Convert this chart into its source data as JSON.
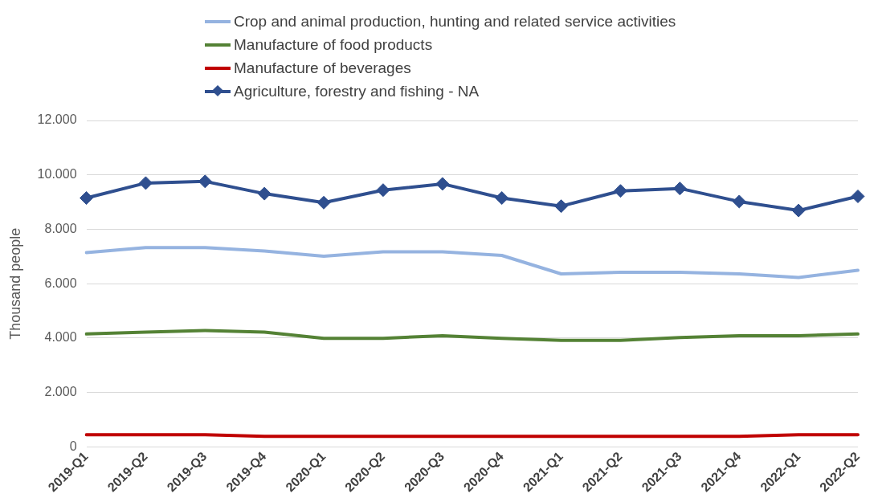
{
  "chart_data": {
    "type": "line",
    "ylabel": "Thousand people",
    "categories": [
      "2019-Q1",
      "2019-Q2",
      "2019-Q3",
      "2019-Q4",
      "2020-Q1",
      "2020-Q2",
      "2020-Q3",
      "2020-Q4",
      "2021-Q1",
      "2021-Q2",
      "2021-Q3",
      "2021-Q4",
      "2022-Q1",
      "2022-Q2"
    ],
    "series": [
      {
        "name": "Crop and animal production, hunting and related service activities",
        "color": "#95b3e0",
        "marker": "none",
        "values": [
          7140,
          7330,
          7330,
          7200,
          7010,
          7170,
          7170,
          7040,
          6360,
          6420,
          6420,
          6360,
          6230,
          6490
        ]
      },
      {
        "name": "Manufacture of food products",
        "color": "#548235",
        "marker": "none",
        "values": [
          4150,
          4220,
          4280,
          4220,
          3990,
          3990,
          4090,
          3990,
          3920,
          3920,
          4020,
          4090,
          4090,
          4150
        ]
      },
      {
        "name": "Manufacture of beverages",
        "color": "#c00000",
        "marker": "none",
        "values": [
          450,
          450,
          450,
          390,
          390,
          390,
          390,
          390,
          390,
          390,
          390,
          390,
          450,
          450
        ]
      },
      {
        "name": "Agriculture, forestry and fishing - NA",
        "color": "#2f4f8f",
        "marker": "diamond",
        "values": [
          9150,
          9700,
          9760,
          9310,
          8980,
          9440,
          9670,
          9150,
          8850,
          9410,
          9500,
          9020,
          8690,
          9210
        ]
      }
    ],
    "ylim": [
      0,
      12000
    ],
    "yticks": [
      {
        "value": 0,
        "label": "0"
      },
      {
        "value": 2000,
        "label": "2.000"
      },
      {
        "value": 4000,
        "label": "4.000"
      },
      {
        "value": 6000,
        "label": "6.000"
      },
      {
        "value": 8000,
        "label": "8.000"
      },
      {
        "value": 10000,
        "label": "10.000"
      },
      {
        "value": 12000,
        "label": "12.000"
      }
    ],
    "grid": "y",
    "legend": "top"
  }
}
